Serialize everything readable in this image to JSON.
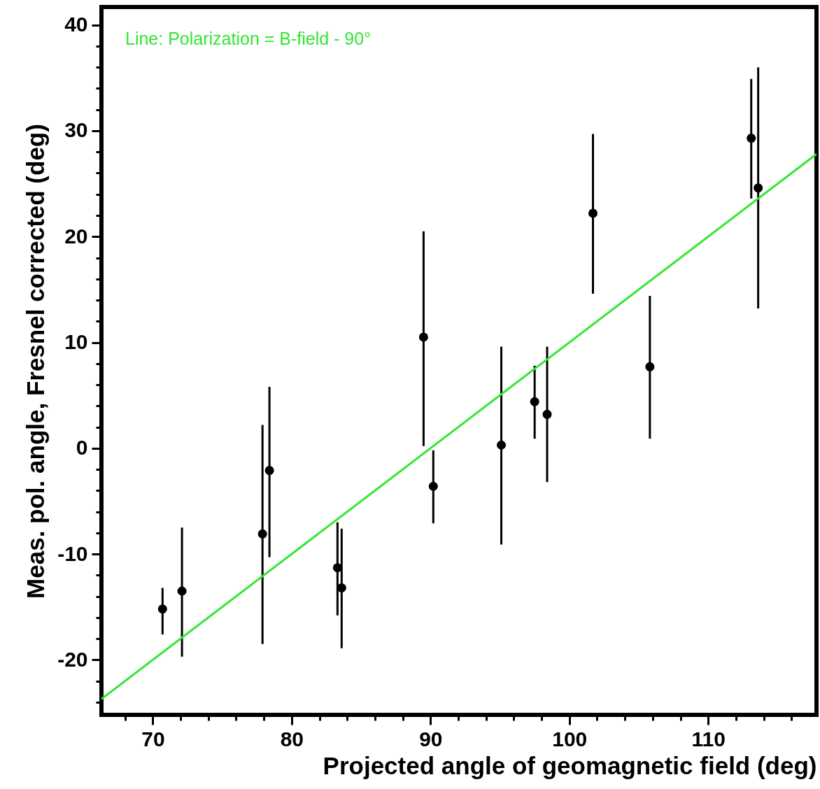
{
  "chart_data": {
    "type": "scatter",
    "xlabel": "Projected angle of geomagnetic field (deg)",
    "ylabel": "Meas. pol. angle, Fresnel corrected (deg)",
    "annotations": [
      "Line: Polarization = B-field - 90°"
    ],
    "xlim": [
      66.3,
      117.8
    ],
    "ylim": [
      -25.2,
      41.7
    ],
    "xticks": [
      {
        "value": 68,
        "label": null
      },
      70,
      {
        "value": 72,
        "label": null
      },
      {
        "value": 74,
        "label": null
      },
      {
        "value": 76,
        "label": null
      },
      {
        "value": 78,
        "label": null
      },
      80,
      {
        "value": 82,
        "label": null
      },
      {
        "value": 84,
        "label": null
      },
      {
        "value": 86,
        "label": null
      },
      {
        "value": 88,
        "label": null
      },
      90,
      {
        "value": 92,
        "label": null
      },
      {
        "value": 94,
        "label": null
      },
      {
        "value": 96,
        "label": null
      },
      {
        "value": 98,
        "label": null
      },
      100,
      {
        "value": 102,
        "label": null
      },
      {
        "value": 104,
        "label": null
      },
      {
        "value": 106,
        "label": null
      },
      {
        "value": 108,
        "label": null
      },
      110,
      {
        "value": 112,
        "label": null
      },
      {
        "value": 114,
        "label": null
      },
      {
        "value": 116,
        "label": null
      }
    ],
    "yticks": [
      {
        "value": -24,
        "label": null
      },
      {
        "value": -22,
        "label": null
      },
      -20,
      {
        "value": -18,
        "label": null
      },
      {
        "value": -16,
        "label": null
      },
      {
        "value": -14,
        "label": null
      },
      {
        "value": -12,
        "label": null
      },
      -10,
      {
        "value": -8,
        "label": null
      },
      {
        "value": -6,
        "label": null
      },
      {
        "value": -4,
        "label": null
      },
      {
        "value": -2,
        "label": null
      },
      0,
      {
        "value": 2,
        "label": null
      },
      {
        "value": 4,
        "label": null
      },
      {
        "value": 6,
        "label": null
      },
      {
        "value": 8,
        "label": null
      },
      10,
      {
        "value": 12,
        "label": null
      },
      {
        "value": 14,
        "label": null
      },
      {
        "value": 16,
        "label": null
      },
      {
        "value": 18,
        "label": null
      },
      20,
      {
        "value": 22,
        "label": null
      },
      {
        "value": 24,
        "label": null
      },
      {
        "value": 26,
        "label": null
      },
      {
        "value": 28,
        "label": null
      },
      30,
      {
        "value": 32,
        "label": null
      },
      {
        "value": 34,
        "label": null
      },
      {
        "value": 36,
        "label": null
      },
      {
        "value": 38,
        "label": null
      },
      40
    ],
    "series": [
      {
        "type": "scatter",
        "marker": "circle",
        "color": "#000000",
        "x": [
          70.7,
          72.1,
          77.9,
          78.4,
          83.3,
          83.6,
          89.5,
          90.2,
          95.1,
          97.5,
          98.4,
          101.7,
          105.8,
          113.1,
          113.6
        ],
        "values": [
          -15.2,
          -13.5,
          -8.1,
          -2.1,
          -11.3,
          -13.2,
          10.5,
          -3.6,
          0.3,
          4.4,
          3.2,
          22.2,
          7.7,
          29.3,
          24.6
        ],
        "errors": [
          [
            -17.6,
            -13.2
          ],
          [
            -19.7,
            -7.5
          ],
          [
            -18.5,
            2.2
          ],
          [
            -10.3,
            5.8
          ],
          [
            -15.8,
            -7.0
          ],
          [
            -18.9,
            -7.6
          ],
          [
            0.2,
            20.5
          ],
          [
            -7.1,
            -0.2
          ],
          [
            -9.1,
            9.6
          ],
          [
            0.9,
            7.8
          ],
          [
            -3.2,
            9.6
          ],
          [
            14.6,
            29.7
          ],
          [
            0.9,
            14.4
          ],
          [
            23.6,
            34.9
          ],
          [
            13.2,
            36.0
          ]
        ]
      },
      {
        "type": "line",
        "color": "#33e633",
        "x": [
          66.3,
          117.8
        ],
        "values": [
          -23.7,
          27.8
        ]
      }
    ]
  }
}
